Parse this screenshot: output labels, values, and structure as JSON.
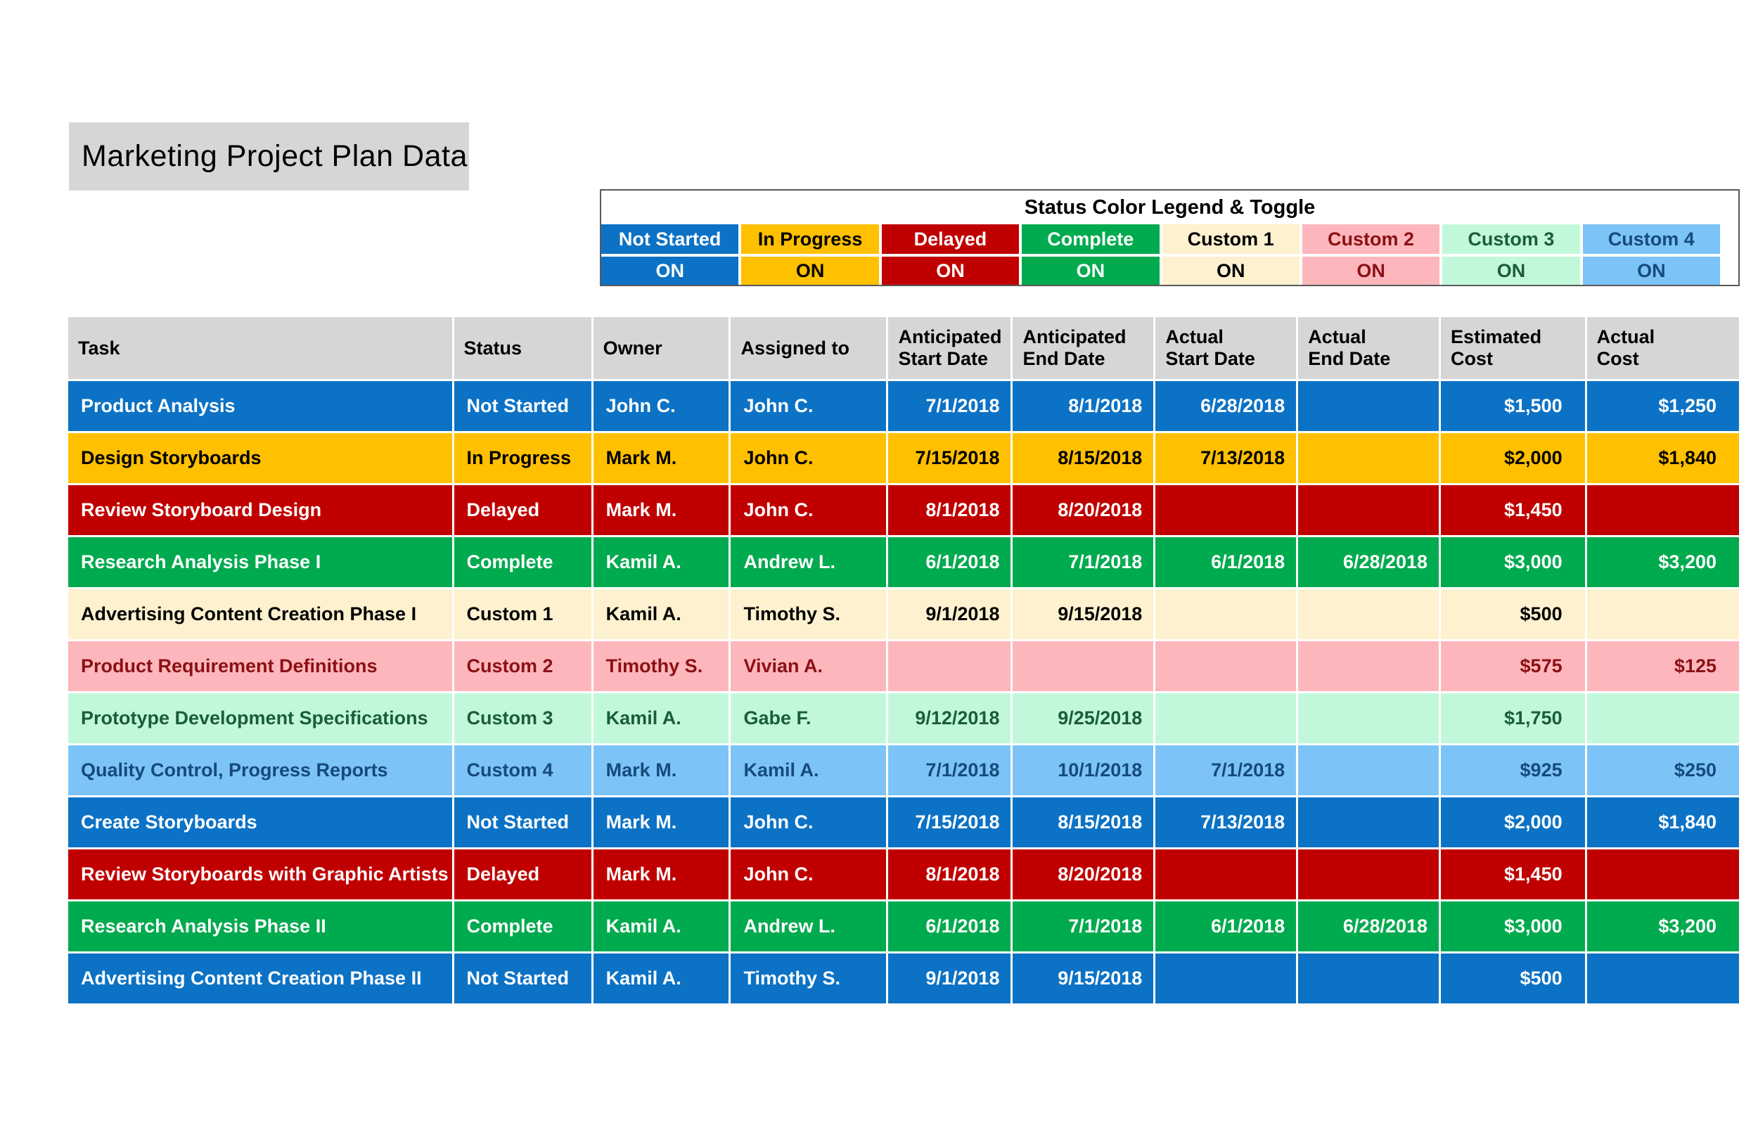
{
  "page": {
    "title": "Marketing Project Plan Data"
  },
  "colors": {
    "title_block_bg": "#D6D6D6",
    "table_header_bg": "#D6D6D6",
    "legend_border": "#595959",
    "statuses": {
      "not_started": {
        "bg": "#0C72C5",
        "fg": "#FFFFFF"
      },
      "in_progress": {
        "bg": "#FFC000",
        "fg": "#000000"
      },
      "delayed": {
        "bg": "#C00000",
        "fg": "#FFFFFF"
      },
      "complete": {
        "bg": "#00AA4E",
        "fg": "#FFFFFF"
      },
      "custom1": {
        "bg": "#FDF1CF",
        "fg": "#000000"
      },
      "custom2": {
        "bg": "#FDB7BC",
        "fg": "#8B1015"
      },
      "custom3": {
        "bg": "#C2F8DA",
        "fg": "#1A5E38"
      },
      "custom4": {
        "bg": "#7CC4F7",
        "fg": "#164A7C"
      }
    }
  },
  "legend": {
    "title": "Status Color Legend & Toggle",
    "items": [
      {
        "label": "Not Started",
        "toggle": "ON",
        "status": "not_started"
      },
      {
        "label": "In Progress",
        "toggle": "ON",
        "status": "in_progress"
      },
      {
        "label": "Delayed",
        "toggle": "ON",
        "status": "delayed"
      },
      {
        "label": "Complete",
        "toggle": "ON",
        "status": "complete"
      },
      {
        "label": "Custom 1",
        "toggle": "ON",
        "status": "custom1"
      },
      {
        "label": "Custom 2",
        "toggle": "ON",
        "status": "custom2"
      },
      {
        "label": "Custom 3",
        "toggle": "ON",
        "status": "custom3"
      },
      {
        "label": "Custom 4",
        "toggle": "ON",
        "status": "custom4"
      }
    ]
  },
  "table": {
    "columns": [
      {
        "key": "task",
        "label": "Task",
        "align": "left"
      },
      {
        "key": "status",
        "label": "Status",
        "align": "left"
      },
      {
        "key": "owner",
        "label": "Owner",
        "align": "left"
      },
      {
        "key": "assigned_to",
        "label": "Assigned to",
        "align": "left"
      },
      {
        "key": "anticipated_start_date",
        "label": "Anticipated\nStart Date",
        "align": "right"
      },
      {
        "key": "anticipated_end_date",
        "label": "Anticipated\nEnd Date",
        "align": "right"
      },
      {
        "key": "actual_start_date",
        "label": "Actual\nStart Date",
        "align": "right"
      },
      {
        "key": "actual_end_date",
        "label": "Actual\nEnd Date",
        "align": "right"
      },
      {
        "key": "estimated_cost",
        "label": "Estimated\nCost",
        "align": "right-money"
      },
      {
        "key": "actual_cost",
        "label": "Actual\nCost",
        "align": "right-money"
      }
    ],
    "rows": [
      {
        "status_key": "not_started",
        "task": "Product Analysis",
        "status": "Not Started",
        "owner": "John C.",
        "assigned_to": "John C.",
        "anticipated_start_date": "7/1/2018",
        "anticipated_end_date": "8/1/2018",
        "actual_start_date": "6/28/2018",
        "actual_end_date": "",
        "estimated_cost": "$1,500",
        "actual_cost": "$1,250"
      },
      {
        "status_key": "in_progress",
        "task": "Design Storyboards",
        "status": "In Progress",
        "owner": "Mark M.",
        "assigned_to": "John C.",
        "anticipated_start_date": "7/15/2018",
        "anticipated_end_date": "8/15/2018",
        "actual_start_date": "7/13/2018",
        "actual_end_date": "",
        "estimated_cost": "$2,000",
        "actual_cost": "$1,840"
      },
      {
        "status_key": "delayed",
        "task": "Review Storyboard Design",
        "status": "Delayed",
        "owner": "Mark M.",
        "assigned_to": "John C.",
        "anticipated_start_date": "8/1/2018",
        "anticipated_end_date": "8/20/2018",
        "actual_start_date": "",
        "actual_end_date": "",
        "estimated_cost": "$1,450",
        "actual_cost": ""
      },
      {
        "status_key": "complete",
        "task": "Research Analysis Phase I",
        "status": "Complete",
        "owner": "Kamil A.",
        "assigned_to": "Andrew L.",
        "anticipated_start_date": "6/1/2018",
        "anticipated_end_date": "7/1/2018",
        "actual_start_date": "6/1/2018",
        "actual_end_date": "6/28/2018",
        "estimated_cost": "$3,000",
        "actual_cost": "$3,200"
      },
      {
        "status_key": "custom1",
        "task": "Advertising Content Creation Phase I",
        "status": "Custom 1",
        "owner": "Kamil A.",
        "assigned_to": "Timothy S.",
        "anticipated_start_date": "9/1/2018",
        "anticipated_end_date": "9/15/2018",
        "actual_start_date": "",
        "actual_end_date": "",
        "estimated_cost": "$500",
        "actual_cost": ""
      },
      {
        "status_key": "custom2",
        "task": "Product Requirement Definitions",
        "status": "Custom 2",
        "owner": "Timothy S.",
        "assigned_to": "Vivian A.",
        "anticipated_start_date": "",
        "anticipated_end_date": "",
        "actual_start_date": "",
        "actual_end_date": "",
        "estimated_cost": "$575",
        "actual_cost": "$125"
      },
      {
        "status_key": "custom3",
        "task": "Prototype Development Specifications",
        "status": "Custom 3",
        "owner": "Kamil A.",
        "assigned_to": "Gabe F.",
        "anticipated_start_date": "9/12/2018",
        "anticipated_end_date": "9/25/2018",
        "actual_start_date": "",
        "actual_end_date": "",
        "estimated_cost": "$1,750",
        "actual_cost": ""
      },
      {
        "status_key": "custom4",
        "task": "Quality Control, Progress Reports",
        "status": "Custom 4",
        "owner": "Mark M.",
        "assigned_to": "Kamil A.",
        "anticipated_start_date": "7/1/2018",
        "anticipated_end_date": "10/1/2018",
        "actual_start_date": "7/1/2018",
        "actual_end_date": "",
        "estimated_cost": "$925",
        "actual_cost": "$250"
      },
      {
        "status_key": "not_started",
        "task": "Create Storyboards",
        "status": "Not Started",
        "owner": "Mark M.",
        "assigned_to": "John C.",
        "anticipated_start_date": "7/15/2018",
        "anticipated_end_date": "8/15/2018",
        "actual_start_date": "7/13/2018",
        "actual_end_date": "",
        "estimated_cost": "$2,000",
        "actual_cost": "$1,840"
      },
      {
        "status_key": "delayed",
        "task": "Review Storyboards with Graphic Artists",
        "status": "Delayed",
        "owner": "Mark M.",
        "assigned_to": "John C.",
        "anticipated_start_date": "8/1/2018",
        "anticipated_end_date": "8/20/2018",
        "actual_start_date": "",
        "actual_end_date": "",
        "estimated_cost": "$1,450",
        "actual_cost": ""
      },
      {
        "status_key": "complete",
        "task": "Research Analysis Phase II",
        "status": "Complete",
        "owner": "Kamil A.",
        "assigned_to": "Andrew L.",
        "anticipated_start_date": "6/1/2018",
        "anticipated_end_date": "7/1/2018",
        "actual_start_date": "6/1/2018",
        "actual_end_date": "6/28/2018",
        "estimated_cost": "$3,000",
        "actual_cost": "$3,200"
      },
      {
        "status_key": "not_started",
        "task": "Advertising Content Creation Phase II",
        "status": "Not Started",
        "owner": "Kamil A.",
        "assigned_to": "Timothy S.",
        "anticipated_start_date": "9/1/2018",
        "anticipated_end_date": "9/15/2018",
        "actual_start_date": "",
        "actual_end_date": "",
        "estimated_cost": "$500",
        "actual_cost": ""
      }
    ]
  }
}
